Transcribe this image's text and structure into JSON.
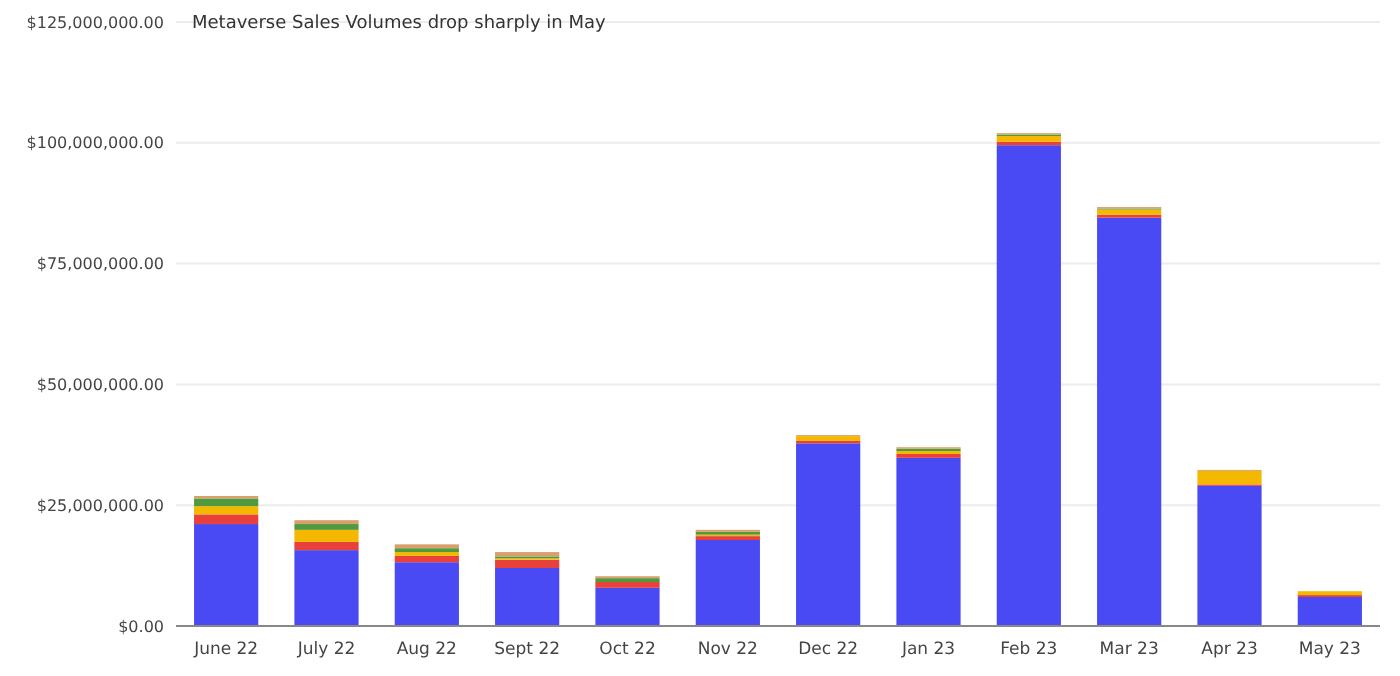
{
  "chart_data": {
    "type": "bar",
    "title": "Metaverse Sales Volumes drop sharply in May",
    "stacked": true,
    "grid": "y",
    "categories": [
      "June 22",
      "July 22",
      "Aug 22",
      "Sept 22",
      "Oct 22",
      "Nov 22",
      "Dec 22",
      "Jan 23",
      "Feb 23",
      "Mar 23",
      "Apr 23",
      "May 23"
    ],
    "series": [
      {
        "color": "#4a4af4",
        "values": [
          21100000,
          15700000,
          13200000,
          12000000,
          7900000,
          17800000,
          37800000,
          34800000,
          99500000,
          84500000,
          29000000,
          6000000
        ]
      },
      {
        "color": "#e8403a",
        "values": [
          2000000,
          1700000,
          1300000,
          1700000,
          1200000,
          800000,
          500000,
          800000,
          700000,
          600000,
          300000,
          400000
        ]
      },
      {
        "color": "#f5b800",
        "values": [
          1700000,
          2500000,
          800000,
          300000,
          0,
          300000,
          1000000,
          600000,
          1200000,
          1100000,
          2800000,
          800000
        ]
      },
      {
        "color": "#4f9a3e",
        "values": [
          1600000,
          1200000,
          800000,
          400000,
          800000,
          600000,
          null,
          500000,
          300000,
          200000,
          null,
          0
        ]
      },
      {
        "color": "#d9a06b",
        "values": [
          500000,
          800000,
          800000,
          900000,
          400000,
          400000,
          200000,
          300000,
          300000,
          300000,
          200000,
          null
        ]
      }
    ],
    "ylim": [
      0,
      125000000
    ],
    "yticks": [
      {
        "value": 0,
        "label": "$0.00"
      },
      {
        "value": 25000000,
        "label": "$25,000,000.00"
      },
      {
        "value": 50000000,
        "label": "$50,000,000.00"
      },
      {
        "value": 75000000,
        "label": "$75,000,000.00"
      },
      {
        "value": 100000000,
        "label": "$100,000,000.00"
      },
      {
        "value": 125000000,
        "label": "$125,000,000.00"
      }
    ]
  }
}
